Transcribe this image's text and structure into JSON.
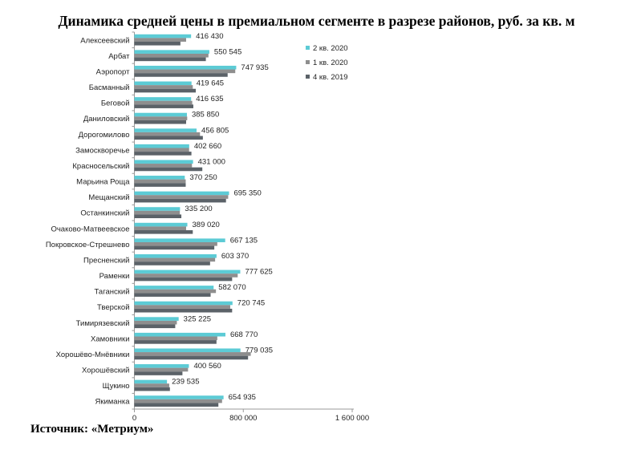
{
  "chart_data": {
    "type": "bar",
    "orientation": "horizontal",
    "title": "Динамика средней цены в премиальном сегменте в разрезе районов, руб. за кв. м",
    "source": "Источник: «Метриум»",
    "categories": [
      "Алексеевский",
      "Арбат",
      "Аэропорт",
      "Басманный",
      "Беговой",
      "Даниловский",
      "Дорогомилово",
      "Замоскворечье",
      "Красносельский",
      "Марьина Роща",
      "Мещанский",
      "Останкинский",
      "Очаково-Матвеевское",
      "Покровское-Стрешнево",
      "Пресненский",
      "Раменки",
      "Таганский",
      "Тверской",
      "Тимирязевский",
      "Хамовники",
      "Хорошёво-Мнёвники",
      "Хорошёвский",
      "Щукино",
      "Якиманка"
    ],
    "series": [
      {
        "name": "2 кв. 2020",
        "color": "#5ccbd5",
        "labeled": true,
        "values": [
          416430,
          550545,
          747935,
          419645,
          416635,
          385850,
          456805,
          402660,
          431000,
          370250,
          695350,
          335200,
          389020,
          667135,
          603370,
          777625,
          582070,
          720745,
          325225,
          668770,
          779035,
          400560,
          239535,
          654935
        ],
        "labels": [
          "416 430",
          "550 545",
          "747 935",
          "419 645",
          "416 635",
          "385 850",
          "456 805",
          "402 660",
          "431 000",
          "370 250",
          "695 350",
          "335 200",
          "389 020",
          "667 135",
          "603 370",
          "777 625",
          "582 070",
          "720 745",
          "325 225",
          "668 770",
          "779 035",
          "400 560",
          "239 535",
          "654 935"
        ]
      },
      {
        "name": "1 кв. 2020",
        "color": "#8e8e8e",
        "labeled": false,
        "values": [
          380000,
          544000,
          741000,
          429000,
          425000,
          388000,
          482000,
          402000,
          423000,
          377000,
          689000,
          334000,
          380000,
          609000,
          593000,
          759000,
          599000,
          704000,
          312000,
          609000,
          855000,
          394000,
          256000,
          644000
        ]
      },
      {
        "name": "4 кв. 2019",
        "color": "#5b6268",
        "labeled": false,
        "values": [
          338000,
          525000,
          685000,
          451000,
          433000,
          380000,
          503000,
          419000,
          499000,
          377000,
          673000,
          345000,
          429000,
          587000,
          556000,
          718000,
          560000,
          718000,
          300000,
          603000,
          835000,
          353000,
          261000,
          617000
        ]
      }
    ],
    "xlim": [
      0,
      1600000
    ],
    "xticks": [
      0,
      800000,
      1600000
    ],
    "xtick_labels": [
      "0",
      "800 000",
      "1 600 000"
    ],
    "legend_position": "top-right",
    "grid": false
  }
}
